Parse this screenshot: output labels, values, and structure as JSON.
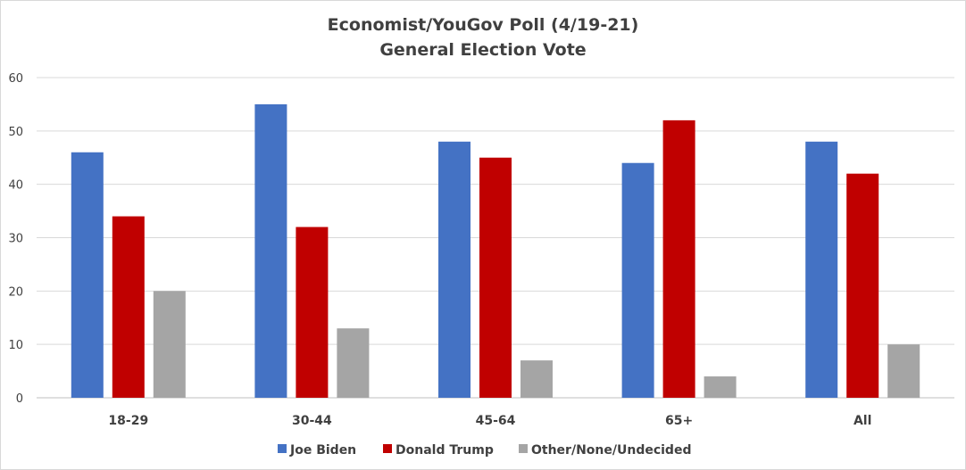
{
  "chart_data": {
    "type": "bar",
    "title": "Economist/YouGov Poll (4/19-21)",
    "subtitle": "General Election Vote",
    "categories": [
      "18-29",
      "30-44",
      "45-64",
      "65+",
      "All"
    ],
    "series": [
      {
        "name": "Joe Biden",
        "color": "#4472c4",
        "values": [
          46,
          55,
          48,
          44,
          48
        ]
      },
      {
        "name": "Donald Trump",
        "color": "#c00000",
        "values": [
          34,
          32,
          45,
          52,
          42
        ]
      },
      {
        "name": "Other/None/Undecided",
        "color": "#a5a5a5",
        "values": [
          20,
          13,
          7,
          4,
          10
        ]
      }
    ],
    "ylim": [
      0,
      60
    ],
    "yticks": [
      "0",
      "10",
      "20",
      "30",
      "40",
      "50",
      "60"
    ],
    "grid": true,
    "legend_position": "bottom"
  }
}
